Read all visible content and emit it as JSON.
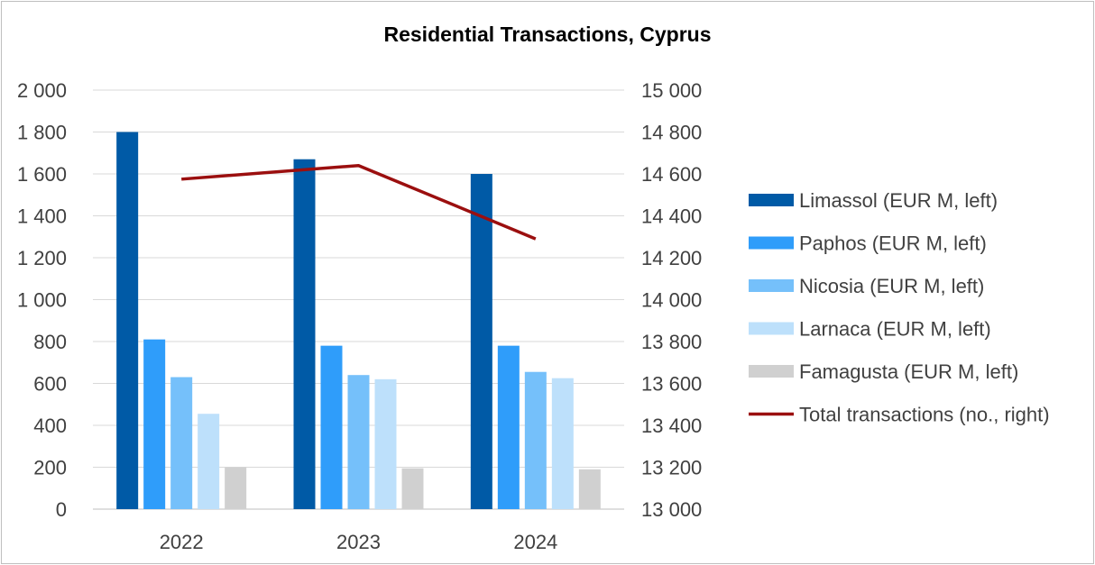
{
  "chart_data": {
    "type": "bar",
    "title": "Residential Transactions, Cyprus",
    "categories": [
      "2022",
      "2023",
      "2024"
    ],
    "y_left": {
      "min": 0,
      "max": 2000,
      "step": 200,
      "tick_labels": [
        "0",
        "200",
        "400",
        "600",
        "800",
        "1 000",
        "1 200",
        "1 400",
        "1 600",
        "1 800",
        "2 000"
      ]
    },
    "y_right": {
      "min": 13000,
      "max": 15000,
      "step": 200,
      "tick_labels": [
        "13 000",
        "13 200",
        "13 400",
        "13 600",
        "13 800",
        "14 000",
        "14 200",
        "14 400",
        "14 600",
        "14 800",
        "15 000"
      ]
    },
    "gridlines": true,
    "legend_position": "right",
    "series": [
      {
        "name": "Limassol (EUR M, left)",
        "type": "bar",
        "axis": "left",
        "color": "#005aa6",
        "values": [
          1800,
          1670,
          1600
        ]
      },
      {
        "name": "Paphos (EUR M, left)",
        "type": "bar",
        "axis": "left",
        "color": "#2f9dfa",
        "values": [
          810,
          780,
          780
        ]
      },
      {
        "name": "Nicosia (EUR M, left)",
        "type": "bar",
        "axis": "left",
        "color": "#75c0fa",
        "values": [
          630,
          640,
          655
        ]
      },
      {
        "name": "Larnaca (EUR M, left)",
        "type": "bar",
        "axis": "left",
        "color": "#bde0fb",
        "values": [
          455,
          620,
          625
        ]
      },
      {
        "name": "Famagusta (EUR M, left)",
        "type": "bar",
        "axis": "left",
        "color": "#d0d0d0",
        "values": [
          200,
          195,
          190
        ]
      },
      {
        "name": "Total transactions (no., right)",
        "type": "line",
        "axis": "right",
        "color": "#9b0f0f",
        "values": [
          14575,
          14640,
          14290
        ]
      }
    ]
  }
}
